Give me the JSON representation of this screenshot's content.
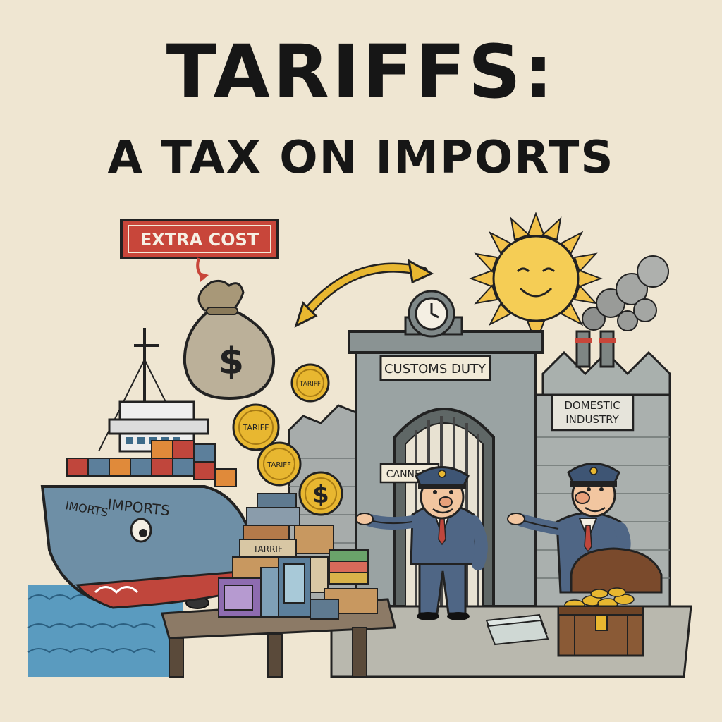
{
  "title": {
    "line1": "TARIFFS:",
    "line2": "A TAX ON IMPORTS"
  },
  "labels": {
    "extra_cost": "EXTRA COST",
    "customs_duty": "CUSTOMS DUTY",
    "domestic_industry_line1": "DOMESTIC",
    "domestic_industry_line2": "INDUSTRY",
    "ship_bow": "IMORTS",
    "ship_side": "IMPORTS",
    "cannery_sign": "CANNERY",
    "crate_tarifi": "TARRIF",
    "coin_tariff_1": "TARIFF",
    "coin_tariff_2": "TARIFF",
    "coin_tariff_3": "TARIFF",
    "money_bag_symbol": "$",
    "coin_dollar_symbol": "$"
  },
  "colors": {
    "background": "#efe6d2",
    "ink": "#161616",
    "sign_red": "#c8463a",
    "hull_blue": "#6e8fa6",
    "hull_red": "#c0463c",
    "stone_gray": "#9aa3a3",
    "coin_gold": "#e8b730",
    "sun_yellow": "#f2c24a",
    "uniform_blue": "#4f6685",
    "chest_brown": "#8a5a36",
    "water": "#5a9bbf"
  },
  "icons": [
    "money-bag-icon",
    "coin-icon",
    "clock-icon",
    "sun-icon",
    "smoke-icon",
    "treasure-chest-icon"
  ]
}
